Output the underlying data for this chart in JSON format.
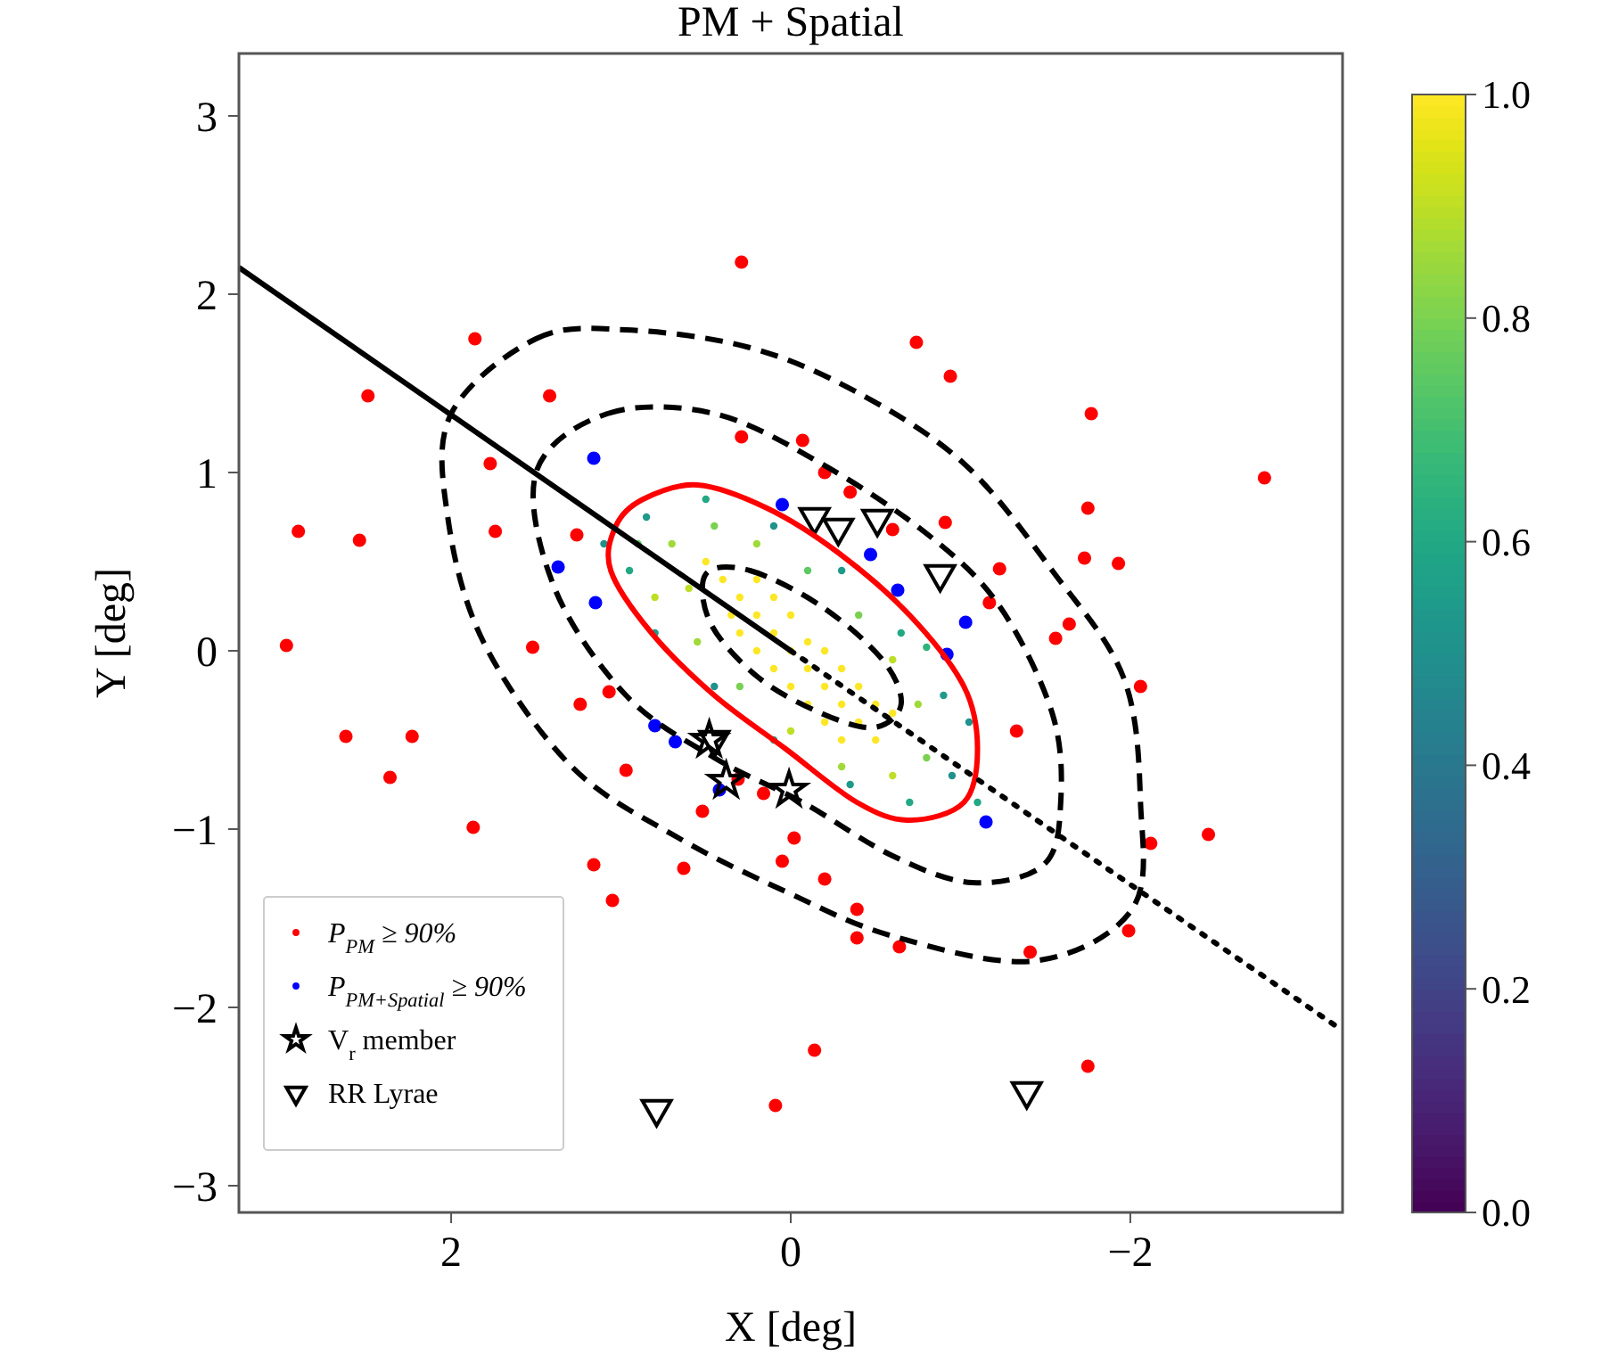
{
  "chart_data": {
    "type": "scatter",
    "title": "PM + Spatial",
    "xlabel": "X [deg]",
    "ylabel": "Y [deg]",
    "xlim": [
      3.25,
      -3.25
    ],
    "ylim": [
      -3.15,
      3.35
    ],
    "xticks": [
      2,
      0,
      {
        "value": -2,
        "label": "−2"
      }
    ],
    "yticks": [
      {
        "value": -3,
        "label": "−3"
      },
      {
        "value": -2,
        "label": "−2"
      },
      {
        "value": -1,
        "label": "−1"
      },
      0,
      1,
      2,
      3
    ],
    "clim": [
      0,
      1
    ],
    "cticks": [
      {
        "value": 0,
        "label": "0.0"
      },
      0.2,
      0.4,
      0.6,
      0.8,
      {
        "value": 1,
        "label": "1.0"
      }
    ],
    "legend": "bottom left",
    "series": [
      {
        "marker": "circle",
        "x": [
          0.4,
          0.3,
          0.2,
          0.1,
          0,
          -0.1,
          -0.2,
          -0.3,
          -0.4,
          -0.5,
          0.3,
          0.1,
          -0.1,
          -0.3,
          0.2,
          0,
          -0.2,
          -0.4,
          -0.6,
          0.5,
          0.1,
          -0.3,
          0.2,
          -0.1,
          0,
          -0.2,
          0.35,
          -0.5,
          0.7,
          0.6,
          0.45,
          0.2,
          -0.1,
          -0.4,
          -0.6,
          -0.75,
          -0.8,
          -0.6,
          -0.3,
          0,
          0.3,
          0.55,
          0.8,
          0.9,
          0.85,
          0.5,
          0.1,
          -0.3,
          -0.65,
          -0.9,
          -0.95,
          -0.7,
          -0.35,
          0.1,
          0.45,
          0.8,
          0.95,
          -1.05,
          -1.1,
          -0.8,
          1.1
        ],
        "values": [
          0.4,
          0.3,
          0.2,
          0.1,
          0,
          -0.1,
          -0.2,
          -0.3,
          -0.4,
          -0.5,
          0.1,
          -0.1,
          -0.3,
          -0.5,
          0.4,
          0.2,
          0,
          -0.2,
          -0.35,
          0.5,
          0.3,
          -0.1,
          0,
          0.05,
          -0.2,
          -0.4,
          0.2,
          -0.3,
          0.6,
          0.35,
          0.7,
          0.6,
          0.45,
          0.2,
          -0.05,
          -0.3,
          -0.6,
          -0.7,
          -0.65,
          -0.45,
          -0.2,
          0.05,
          0.3,
          0.6,
          0.75,
          0.85,
          0.7,
          0.45,
          0.1,
          -0.25,
          -0.7,
          -0.85,
          -0.75,
          -0.5,
          -0.2,
          0.1,
          0.45,
          -0.4,
          -0.85,
          0.02,
          0.6
        ],
        "colors": [
          "#fde725",
          "#fde725",
          "#fde725",
          "#fde725",
          "#fde725",
          "#fde725",
          "#fde725",
          "#fde725",
          "#fde725",
          "#fde725",
          "#fde725",
          "#fde725",
          "#fde725",
          "#fde725",
          "#fde725",
          "#fde725",
          "#fde725",
          "#fde725",
          "#fde725",
          "#fde725",
          "#fde725",
          "#fde725",
          "#fde725",
          "#fde725",
          "#fde725",
          "#fde725",
          "#fde725",
          "#fde725",
          "#a0da39",
          "#bddf26",
          "#7ad151",
          "#a0da39",
          "#5ec962",
          "#7ad151",
          "#bddf26",
          "#a0da39",
          "#7ad151",
          "#bddf26",
          "#a0da39",
          "#bddf26",
          "#7ad151",
          "#a0da39",
          "#bddf26",
          "#5ec962",
          "#1f998a",
          "#22a884",
          "#21918c",
          "#1f998a",
          "#22a884",
          "#1f998a",
          "#21918c",
          "#22a884",
          "#1f998a",
          "#22a884",
          "#21918c",
          "#1f998a",
          "#22a884",
          "#21918c",
          "#22a884",
          "#2fb47c",
          "#21918c"
        ]
      },
      {
        "name": "P$_{PM}$ ≥ 90%",
        "color": "#ff0000",
        "marker": "circle",
        "x": [
          0.29,
          1.86,
          -0.74,
          -0.94,
          2.49,
          1.42,
          -1.77,
          -2.79,
          -0.07,
          -0.2,
          -0.35,
          -1.75,
          -1.73,
          -1.93,
          -1.23,
          -1.17,
          -1.64,
          -1.56,
          -2.06,
          -1.33,
          -2.12,
          -2.46,
          -1.99,
          -0.6,
          -0.91,
          -0.2,
          0.05,
          -0.39,
          0.29,
          1.77,
          2.9,
          2.54,
          1.74,
          1.26,
          2.97,
          1.52,
          1.07,
          1.24,
          2.62,
          2.23,
          2.36,
          0.97,
          0.31,
          0.16,
          0.52,
          1.87,
          -0.02,
          1.16,
          0.63,
          1.05,
          -0.39,
          -0.64,
          -1.41,
          -0.14,
          0.09,
          -1.75
        ],
        "values": [
          2.18,
          1.75,
          1.73,
          1.54,
          1.43,
          1.43,
          1.33,
          0.97,
          1.18,
          1.0,
          0.89,
          0.8,
          0.52,
          0.49,
          0.46,
          0.27,
          0.15,
          0.07,
          -0.2,
          -0.45,
          -1.08,
          -1.03,
          -1.57,
          0.68,
          0.72,
          -1.28,
          -1.18,
          -1.45,
          1.2,
          1.05,
          0.67,
          0.62,
          0.67,
          0.65,
          0.03,
          0.02,
          -0.23,
          -0.3,
          -0.48,
          -0.48,
          -0.71,
          -0.67,
          -0.72,
          -0.8,
          -0.9,
          -0.99,
          -1.05,
          -1.2,
          -1.22,
          -1.4,
          -1.61,
          -1.66,
          -1.69,
          -2.24,
          -2.55,
          -2.33
        ]
      },
      {
        "name": "P$_{PM+Spatial}$ ≥ 90%",
        "color": "#0000ff",
        "marker": "circle",
        "x": [
          1.16,
          1.37,
          1.15,
          0.8,
          0.68,
          0.42,
          0.05,
          -0.47,
          -0.63,
          -1.03,
          -0.92,
          -1.15
        ],
        "values": [
          1.08,
          0.47,
          0.27,
          -0.42,
          -0.51,
          -0.78,
          0.82,
          0.54,
          0.34,
          0.16,
          -0.02,
          -0.96
        ]
      },
      {
        "type": "line",
        "color": "#000000",
        "line_style": "solid",
        "x": [
          3.25,
          0
        ],
        "values": [
          2.15,
          0
        ]
      },
      {
        "type": "line",
        "color": "#000000",
        "line_style": "dotted",
        "x": [
          0,
          -3.25
        ],
        "values": [
          0,
          -2.13
        ]
      },
      {
        "name": "V$_{r}$ member",
        "color": "#000000",
        "marker": "star",
        "x": [
          0.48,
          0.38,
          0.01
        ],
        "values": [
          -0.5,
          -0.73,
          -0.78
        ]
      },
      {
        "name": "RR Lyrae",
        "color": "#000000",
        "marker": "triangle",
        "x": [
          -0.14,
          -0.28,
          -0.51,
          -0.88,
          0.45,
          0.79,
          -1.39
        ],
        "values": [
          0.75,
          0.69,
          0.74,
          0.43,
          -0.5,
          -2.57,
          -2.47
        ]
      }
    ]
  }
}
